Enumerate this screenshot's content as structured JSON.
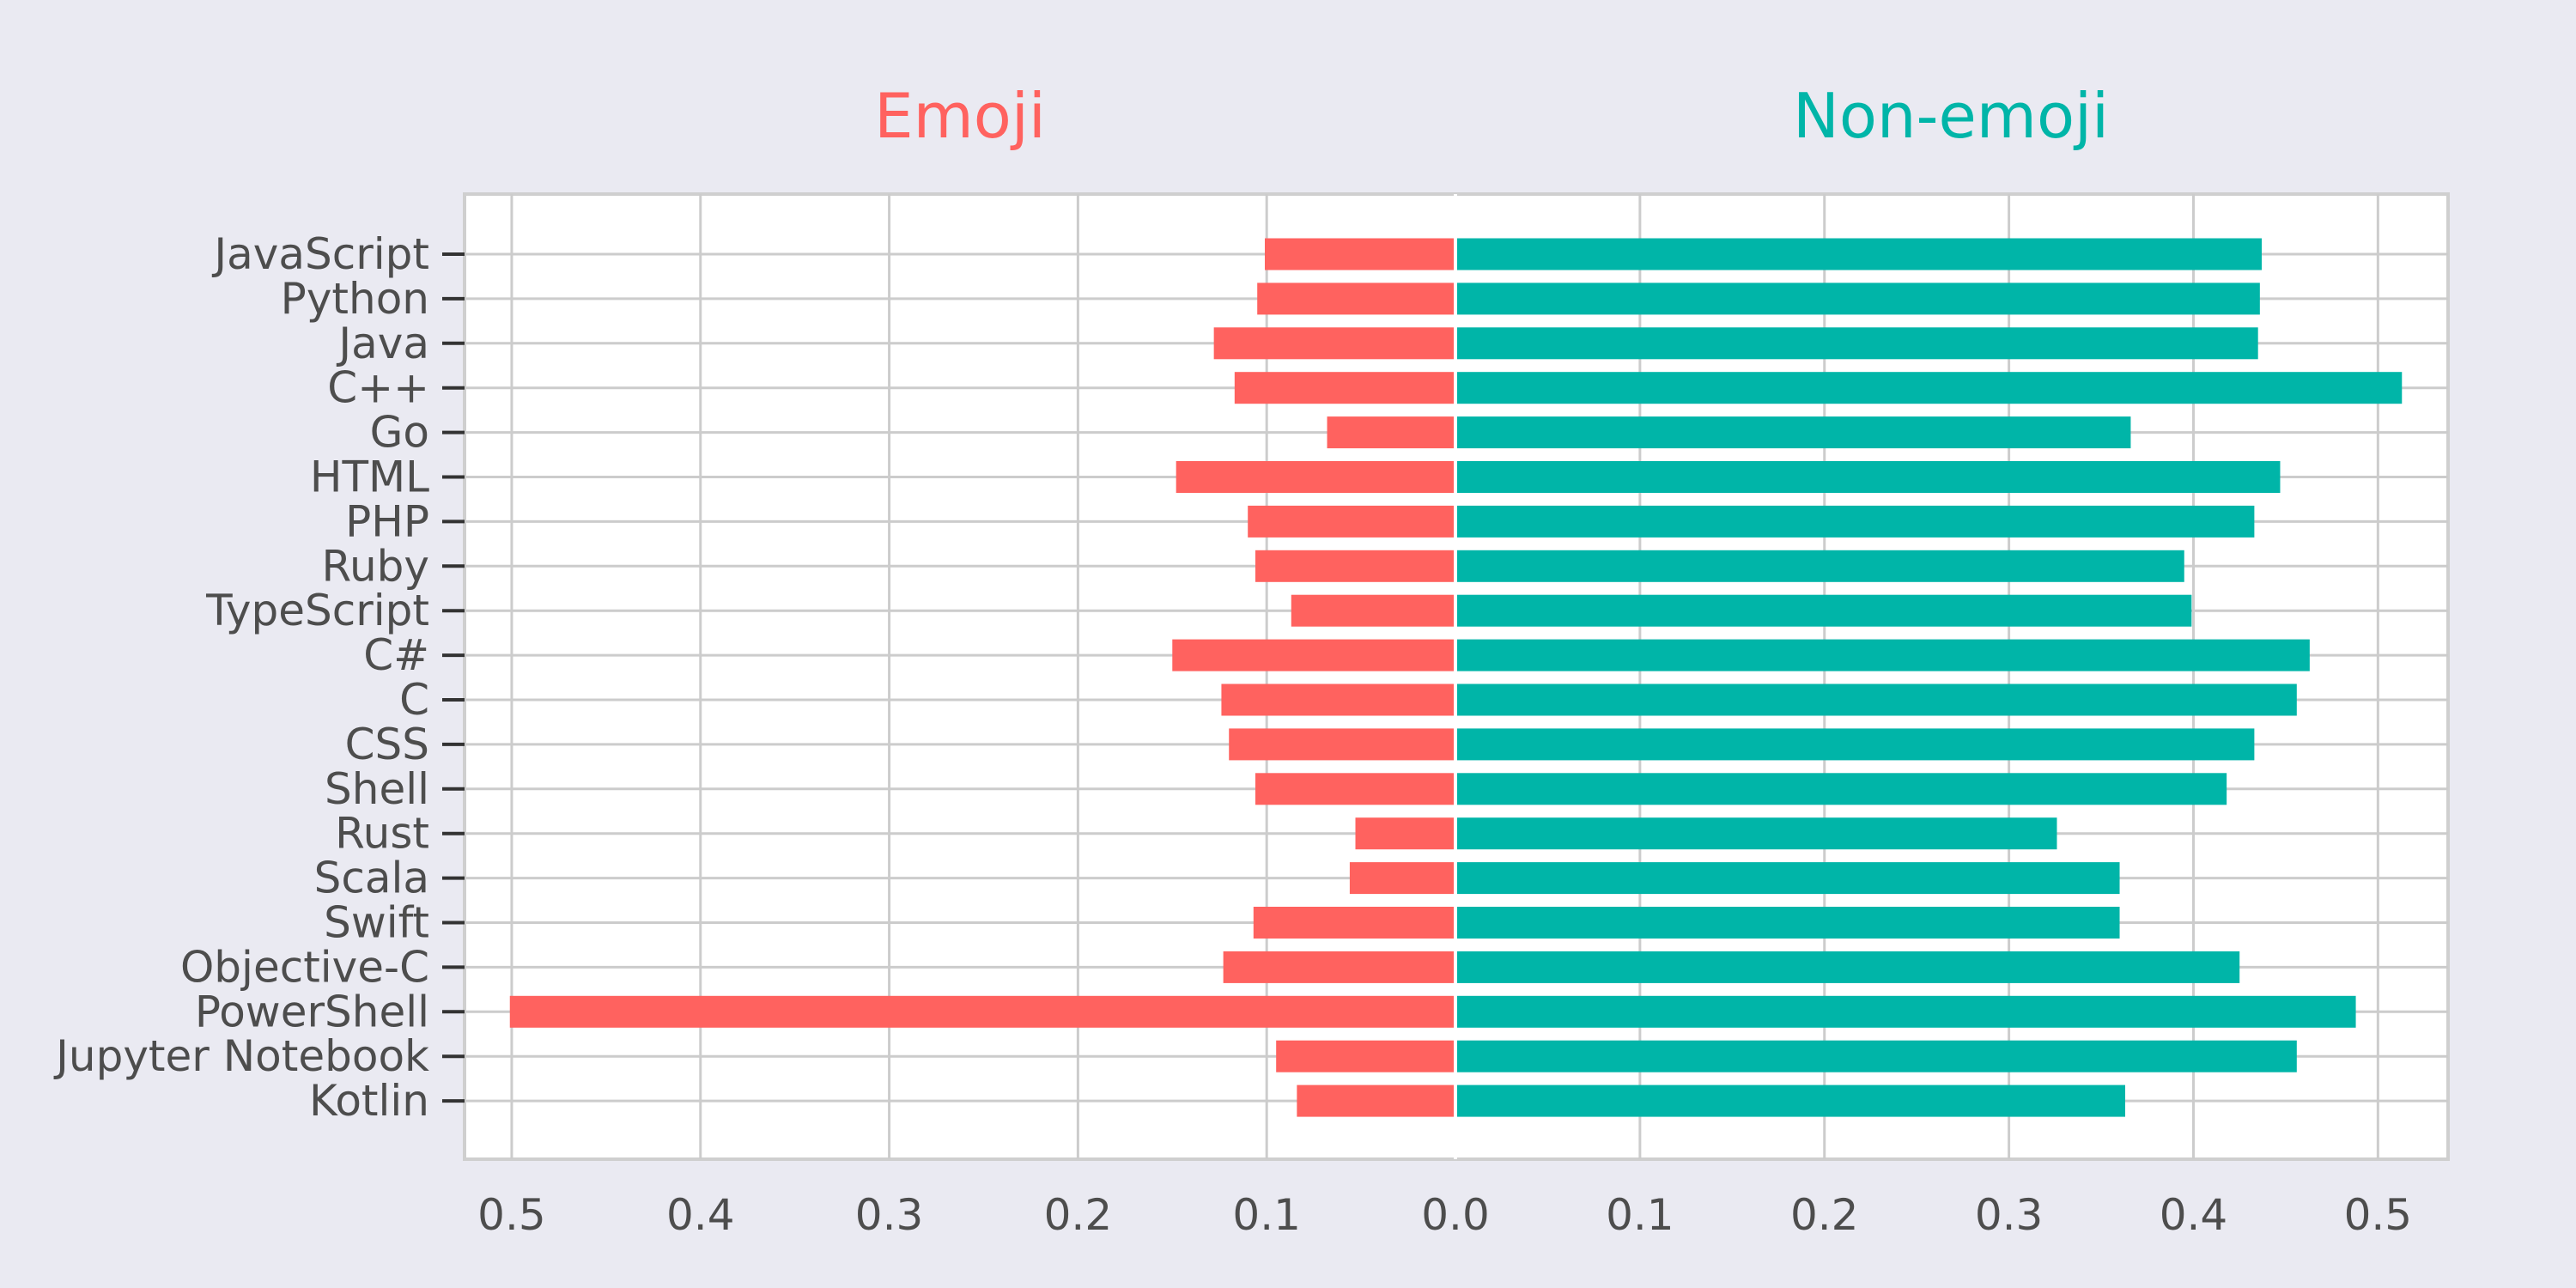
{
  "chart_data": {
    "type": "bar",
    "orientation": "horizontal",
    "layout": "back-to-back",
    "categories": [
      "JavaScript",
      "Python",
      "Java",
      "C++",
      "Go",
      "HTML",
      "PHP",
      "Ruby",
      "TypeScript",
      "C#",
      "C",
      "CSS",
      "Shell",
      "Rust",
      "Scala",
      "Swift",
      "Objective-C",
      "PowerShell",
      "Jupyter Notebook",
      "Kotlin"
    ],
    "series": [
      {
        "name": "Emoji",
        "color": "#ff625f",
        "direction": "left",
        "values": [
          0.101,
          0.105,
          0.128,
          0.117,
          0.068,
          0.148,
          0.11,
          0.106,
          0.087,
          0.15,
          0.124,
          0.12,
          0.106,
          0.053,
          0.056,
          0.107,
          0.123,
          0.501,
          0.095,
          0.084
        ]
      },
      {
        "name": "Non-emoji",
        "color": "#00b5a8",
        "direction": "right",
        "values": [
          0.437,
          0.436,
          0.435,
          0.513,
          0.366,
          0.447,
          0.433,
          0.395,
          0.399,
          0.463,
          0.456,
          0.433,
          0.418,
          0.326,
          0.36,
          0.36,
          0.425,
          0.488,
          0.456,
          0.363
        ]
      }
    ],
    "titles": [
      "Emoji",
      "Non-emoji"
    ],
    "xlabel": "",
    "ylabel": "",
    "xticks_left": [
      "0.5",
      "0.4",
      "0.3",
      "0.2",
      "0.1",
      "0.0"
    ],
    "xticks_right": [
      "0.0",
      "0.1",
      "0.2",
      "0.3",
      "0.4",
      "0.5"
    ],
    "xlim_left": [
      0.525,
      0
    ],
    "xlim_right": [
      0,
      0.538
    ],
    "grid": true,
    "background": "#eaeaf2"
  }
}
